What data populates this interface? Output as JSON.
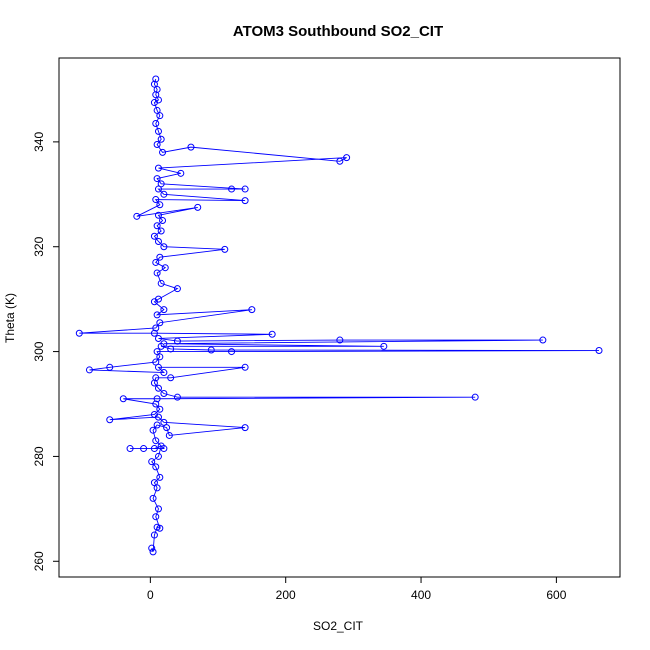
{
  "chart_data": {
    "type": "scatter",
    "title": "ATOM3 Southbound SO2_CIT",
    "xlabel": "SO2_CIT",
    "ylabel": "Theta (K)",
    "xlim": [
      -135,
      694
    ],
    "ylim": [
      257,
      356
    ],
    "xticks": [
      0,
      200,
      400,
      600
    ],
    "yticks": [
      260,
      280,
      300,
      320,
      340
    ],
    "xtick_labels": [
      "0",
      "200",
      "400",
      "600"
    ],
    "ytick_labels": [
      "260",
      "280",
      "300",
      "320",
      "340"
    ],
    "color": "#0000ff",
    "grid": false,
    "markers": "open-circle",
    "connected": true,
    "series": [
      {
        "points": [
          [
            2,
            262.5
          ],
          [
            4,
            261.8
          ],
          [
            6,
            265
          ],
          [
            10,
            266.5
          ],
          [
            14,
            266.3
          ],
          [
            8,
            268.5
          ],
          [
            12,
            270
          ],
          [
            4,
            272
          ],
          [
            10,
            274
          ],
          [
            6,
            275
          ],
          [
            14,
            276
          ],
          [
            8,
            278
          ],
          [
            2,
            279
          ],
          [
            12,
            280
          ],
          [
            16,
            282
          ],
          [
            6,
            281.5
          ],
          [
            -10,
            281.5
          ],
          [
            -30,
            281.5
          ],
          [
            20,
            281.5
          ],
          [
            8,
            283
          ],
          [
            4,
            285
          ],
          [
            10,
            286
          ],
          [
            24,
            285.5
          ],
          [
            28,
            284
          ],
          [
            140,
            285.5
          ],
          [
            20,
            286.5
          ],
          [
            12,
            287.5
          ],
          [
            -60,
            287
          ],
          [
            6,
            288
          ],
          [
            14,
            289
          ],
          [
            8,
            290
          ],
          [
            -40,
            291
          ],
          [
            10,
            291
          ],
          [
            480,
            291.3
          ],
          [
            40,
            291.3
          ],
          [
            20,
            292
          ],
          [
            12,
            293
          ],
          [
            6,
            294
          ],
          [
            8,
            295
          ],
          [
            30,
            295
          ],
          [
            140,
            297
          ],
          [
            12,
            297
          ],
          [
            20,
            296
          ],
          [
            -90,
            296.5
          ],
          [
            -60,
            297
          ],
          [
            8,
            298
          ],
          [
            14,
            299
          ],
          [
            10,
            300
          ],
          [
            120,
            300
          ],
          [
            663,
            300.2
          ],
          [
            90,
            300.3
          ],
          [
            30,
            300.5
          ],
          [
            16,
            301
          ],
          [
            345,
            301
          ],
          [
            20,
            301.5
          ],
          [
            580,
            302.2
          ],
          [
            280,
            302.2
          ],
          [
            40,
            302
          ],
          [
            12,
            302.5
          ],
          [
            180,
            303.3
          ],
          [
            6,
            303.5
          ],
          [
            -105,
            303.5
          ],
          [
            8,
            304.5
          ],
          [
            14,
            305.5
          ],
          [
            150,
            308
          ],
          [
            10,
            307
          ],
          [
            20,
            308
          ],
          [
            6,
            309.5
          ],
          [
            12,
            310
          ],
          [
            40,
            312
          ],
          [
            16,
            313
          ],
          [
            10,
            315
          ],
          [
            22,
            316
          ],
          [
            8,
            317
          ],
          [
            14,
            318
          ],
          [
            110,
            319.5
          ],
          [
            20,
            320
          ],
          [
            12,
            321
          ],
          [
            6,
            322
          ],
          [
            16,
            323
          ],
          [
            10,
            324
          ],
          [
            18,
            325
          ],
          [
            12,
            326
          ],
          [
            70,
            327.5
          ],
          [
            -20,
            325.8
          ],
          [
            14,
            328
          ],
          [
            8,
            329
          ],
          [
            140,
            328.8
          ],
          [
            20,
            330
          ],
          [
            12,
            331
          ],
          [
            120,
            331
          ],
          [
            140,
            331
          ],
          [
            16,
            332
          ],
          [
            10,
            333
          ],
          [
            45,
            334
          ],
          [
            12,
            335
          ],
          [
            290,
            337
          ],
          [
            280,
            336.3
          ],
          [
            60,
            339
          ],
          [
            18,
            338
          ],
          [
            10,
            339.5
          ],
          [
            16,
            340.5
          ],
          [
            12,
            342
          ],
          [
            8,
            343.5
          ],
          [
            14,
            345
          ],
          [
            10,
            346
          ],
          [
            6,
            347.5
          ],
          [
            12,
            348
          ],
          [
            8,
            349
          ],
          [
            10,
            350
          ],
          [
            6,
            351
          ],
          [
            8,
            352
          ]
        ]
      }
    ]
  }
}
